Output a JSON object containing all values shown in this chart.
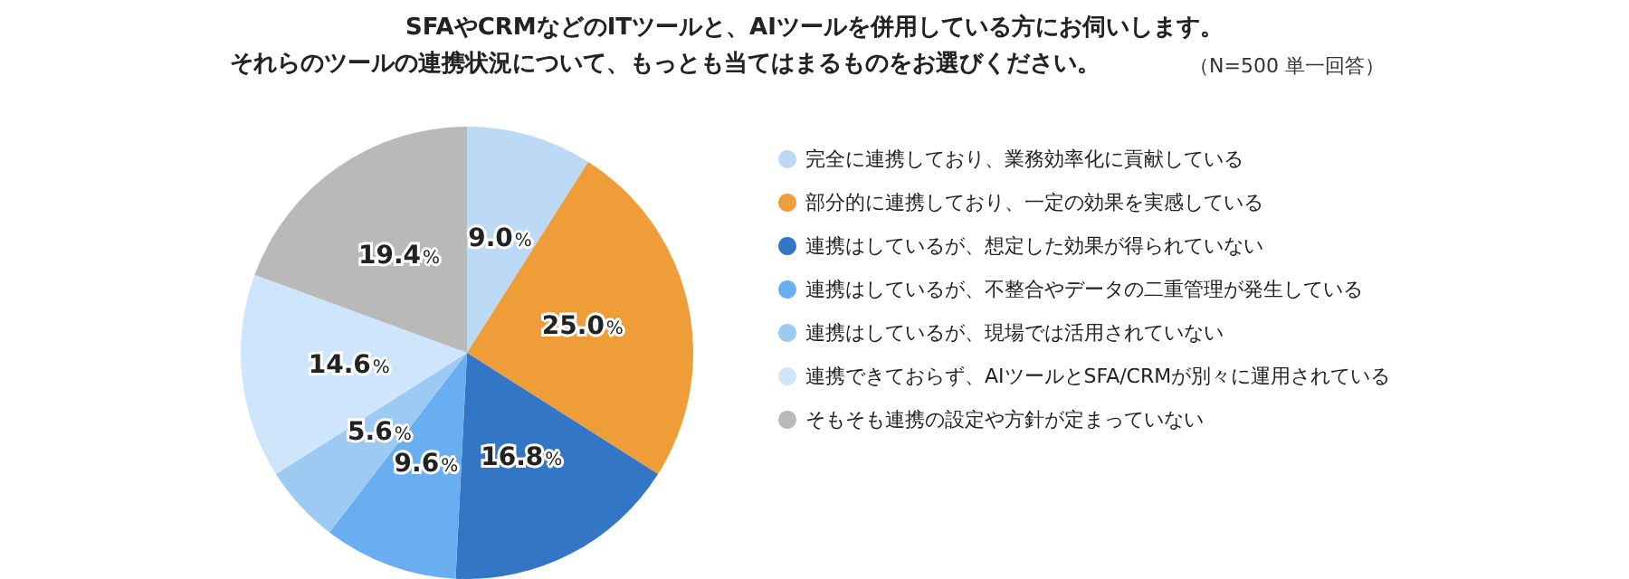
{
  "chart_data": {
    "type": "pie",
    "title": "SFAやCRMなどのITツールと、AIツールを併用している方にお伺いします。",
    "subtitle": "それらのツールの連携状況について、もっとも当てはまるものをお選びください。",
    "annotations": [
      "（N=500 単一回答）"
    ],
    "categories": [
      "完全に連携しており、業務効率化に貢献している",
      "部分的に連携しており、一定の効果を実感している",
      "連携はしているが、想定した効果が得られていない",
      "連携はしているが、不整合やデータの二重管理が発生している",
      "連携はしているが、現場では活用されていない",
      "連携できておらず、AIツールとSFA/CRMが別々に運用されている",
      "そもそも連携の設定や方針が定まっていない"
    ],
    "values": [
      9.0,
      25.0,
      16.8,
      9.6,
      5.6,
      14.6,
      19.4
    ],
    "colors": [
      "#bcd9f5",
      "#ee9d38",
      "#3276c5",
      "#68aef0",
      "#9ccaf2",
      "#cfe5fb",
      "#b9b9b9"
    ],
    "value_labels": [
      "9.0%",
      "25.0%",
      "16.8%",
      "9.6%",
      "5.6%",
      "14.6%",
      "19.4%"
    ],
    "legend": "right"
  }
}
